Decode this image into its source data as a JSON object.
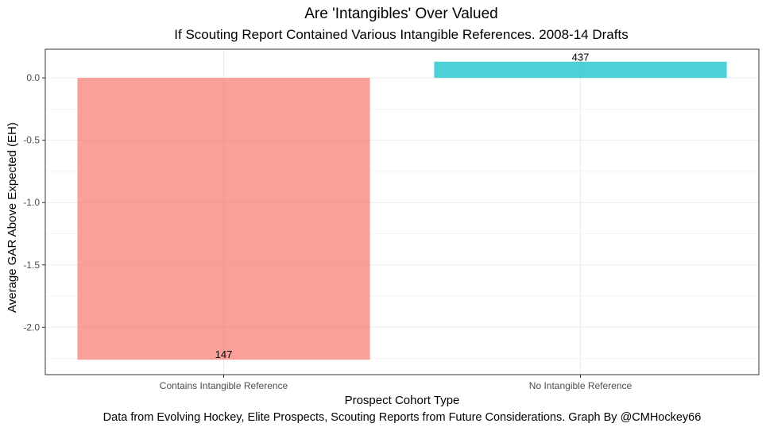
{
  "chart_data": {
    "type": "bar",
    "title": "Are 'Intangibles' Over Valued",
    "subtitle": "If Scouting Report Contained Various Intangible References. 2008-14 Drafts",
    "xlabel": "Prospect Cohort Type",
    "ylabel": "Average GAR Above Expected (EH)",
    "caption": "Data from Evolving Hockey, Elite Prospects, Scouting Reports from Future Considerations. Graph By @CMHockey66",
    "categories": [
      "Contains Intangible Reference",
      "No Intangible Reference"
    ],
    "values": [
      -2.26,
      0.13
    ],
    "bar_labels": [
      "147",
      "437"
    ],
    "colors": [
      "#F8766D",
      "#00BFC4"
    ],
    "ylim": [
      -2.38,
      0.23
    ],
    "yticks": [
      0.0,
      -0.5,
      -1.0,
      -1.5,
      -2.0
    ],
    "ytick_labels": [
      "0.0",
      "-0.5",
      "-1.0",
      "-1.5",
      "-2.0"
    ],
    "grid": true,
    "legend": "none"
  }
}
